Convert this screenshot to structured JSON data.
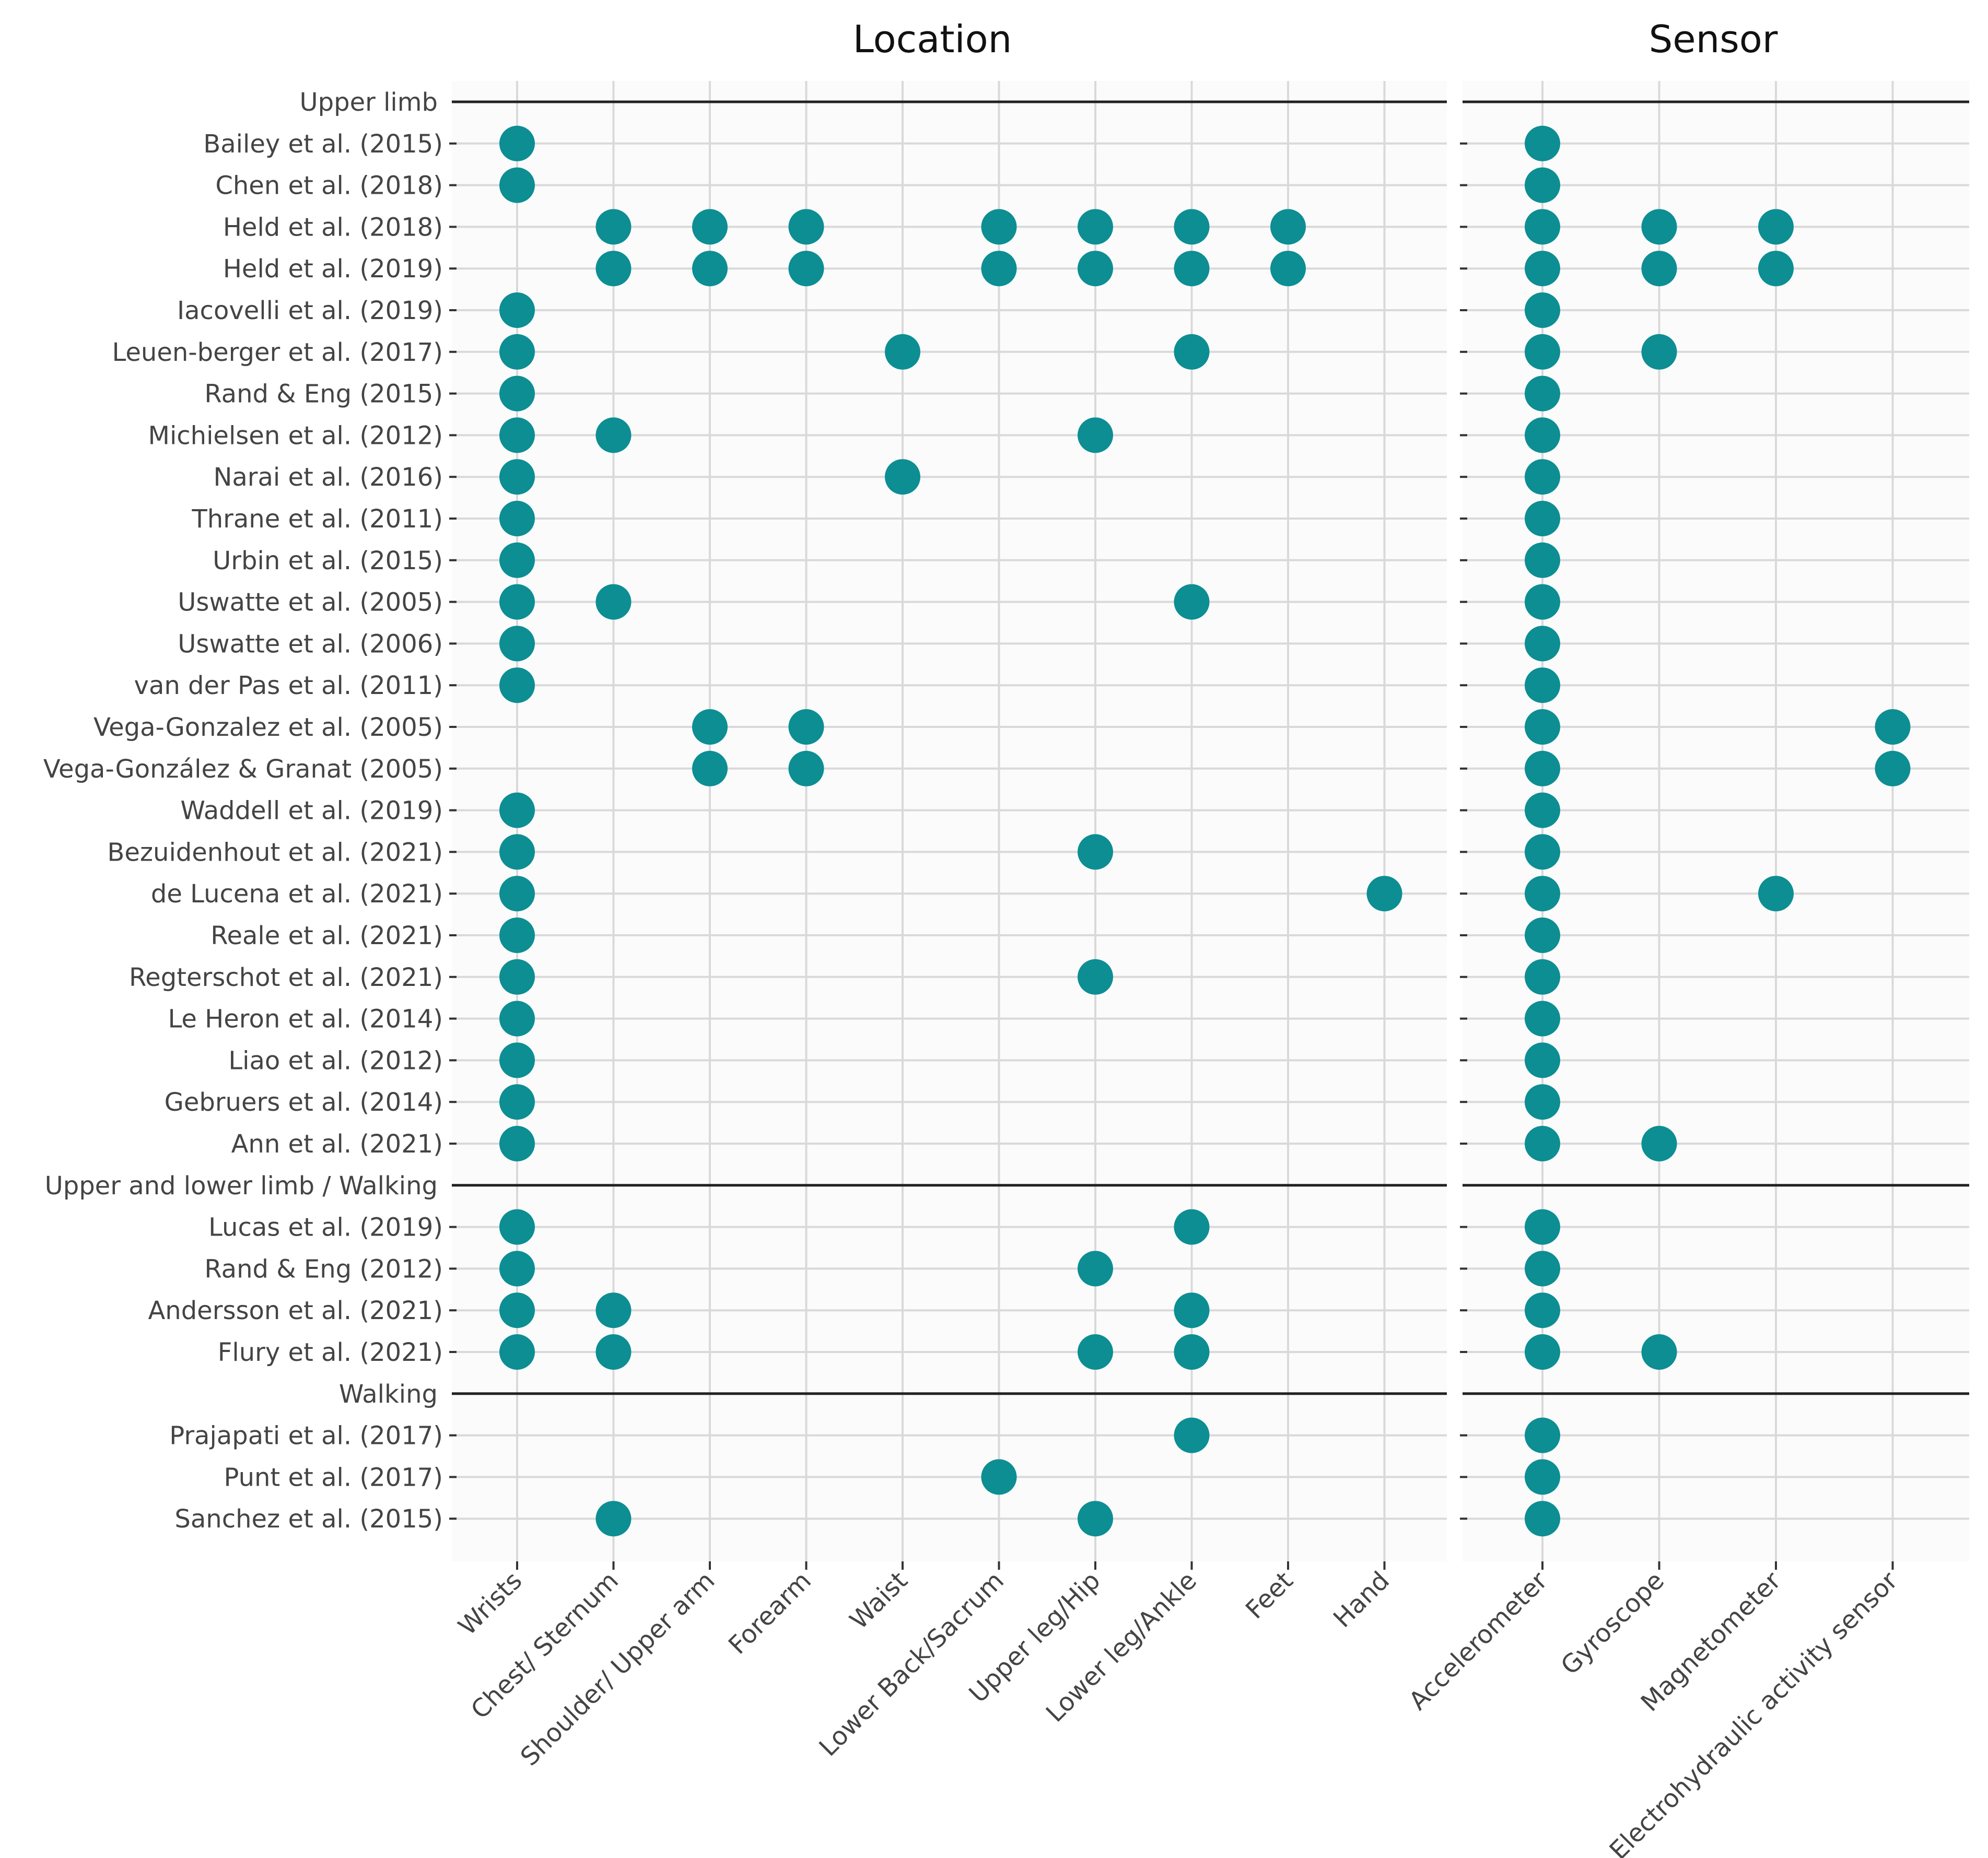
{
  "chart_data": {
    "type": "scatter",
    "panels": [
      {
        "key": "location",
        "title": "Location",
        "categories": [
          "Wrists",
          "Chest/ Sternum",
          "Shoulder/ Upper  arm",
          "Forearm",
          "Waist",
          "Lower Back/Sacrum",
          "Upper leg/Hip",
          "Lower leg/Ankle",
          "Feet",
          "Hand"
        ]
      },
      {
        "key": "sensor",
        "title": "Sensor",
        "categories": [
          "Accelerometer",
          "Gyroscope",
          "Magnetometer",
          "Electrohydraulic activity sensor"
        ]
      }
    ],
    "groups": [
      {
        "label": "Upper limb",
        "rows": [
          {
            "study": "Bailey et al. (2015)",
            "location": [
              "Wrists"
            ],
            "sensor": [
              "Accelerometer"
            ]
          },
          {
            "study": "Chen et al. (2018)",
            "location": [
              "Wrists"
            ],
            "sensor": [
              "Accelerometer"
            ]
          },
          {
            "study": "Held et al. (2018)",
            "location": [
              "Chest/ Sternum",
              "Shoulder/ Upper  arm",
              "Forearm",
              "Lower Back/Sacrum",
              "Upper leg/Hip",
              "Lower leg/Ankle",
              "Feet"
            ],
            "sensor": [
              "Accelerometer",
              "Gyroscope",
              "Magnetometer"
            ]
          },
          {
            "study": "Held et al. (2019)",
            "location": [
              "Chest/ Sternum",
              "Shoulder/ Upper  arm",
              "Forearm",
              "Lower Back/Sacrum",
              "Upper leg/Hip",
              "Lower leg/Ankle",
              "Feet"
            ],
            "sensor": [
              "Accelerometer",
              "Gyroscope",
              "Magnetometer"
            ]
          },
          {
            "study": "Iacovelli et al. (2019)",
            "location": [
              "Wrists"
            ],
            "sensor": [
              "Accelerometer"
            ]
          },
          {
            "study": "Leuen-berger et al. (2017)",
            "location": [
              "Wrists",
              "Waist",
              "Lower leg/Ankle"
            ],
            "sensor": [
              "Accelerometer",
              "Gyroscope"
            ]
          },
          {
            "study": "Rand & Eng (2015)",
            "location": [
              "Wrists"
            ],
            "sensor": [
              "Accelerometer"
            ]
          },
          {
            "study": "Michielsen et al. (2012)",
            "location": [
              "Wrists",
              "Chest/ Sternum",
              "Upper leg/Hip"
            ],
            "sensor": [
              "Accelerometer"
            ]
          },
          {
            "study": "Narai et al. (2016)",
            "location": [
              "Wrists",
              "Waist"
            ],
            "sensor": [
              "Accelerometer"
            ]
          },
          {
            "study": "Thrane et al. (2011)",
            "location": [
              "Wrists"
            ],
            "sensor": [
              "Accelerometer"
            ]
          },
          {
            "study": "Urbin et al. (2015)",
            "location": [
              "Wrists"
            ],
            "sensor": [
              "Accelerometer"
            ]
          },
          {
            "study": "Uswatte et al. (2005)",
            "location": [
              "Wrists",
              "Chest/ Sternum",
              "Lower leg/Ankle"
            ],
            "sensor": [
              "Accelerometer"
            ]
          },
          {
            "study": "Uswatte et al. (2006)",
            "location": [
              "Wrists"
            ],
            "sensor": [
              "Accelerometer"
            ]
          },
          {
            "study": "van der Pas et al. (2011)",
            "location": [
              "Wrists"
            ],
            "sensor": [
              "Accelerometer"
            ]
          },
          {
            "study": "Vega-Gonzalez et al. (2005)",
            "location": [
              "Shoulder/ Upper  arm",
              "Forearm"
            ],
            "sensor": [
              "Accelerometer",
              "Electrohydraulic activity sensor"
            ]
          },
          {
            "study": "Vega-González & Granat (2005)",
            "location": [
              "Shoulder/ Upper  arm",
              "Forearm"
            ],
            "sensor": [
              "Accelerometer",
              "Electrohydraulic activity sensor"
            ]
          },
          {
            "study": "Waddell et al. (2019)",
            "location": [
              "Wrists"
            ],
            "sensor": [
              "Accelerometer"
            ]
          },
          {
            "study": "Bezuidenhout et al. (2021)",
            "location": [
              "Wrists",
              "Upper leg/Hip"
            ],
            "sensor": [
              "Accelerometer"
            ]
          },
          {
            "study": "de Lucena et al. (2021)",
            "location": [
              "Wrists",
              "Hand"
            ],
            "sensor": [
              "Accelerometer",
              "Magnetometer"
            ]
          },
          {
            "study": "Reale et al. (2021)",
            "location": [
              "Wrists"
            ],
            "sensor": [
              "Accelerometer"
            ]
          },
          {
            "study": "Regterschot et al. (2021)",
            "location": [
              "Wrists",
              "Upper leg/Hip"
            ],
            "sensor": [
              "Accelerometer"
            ]
          },
          {
            "study": "Le Heron et al. (2014)",
            "location": [
              "Wrists"
            ],
            "sensor": [
              "Accelerometer"
            ]
          },
          {
            "study": "Liao et al. (2012)",
            "location": [
              "Wrists"
            ],
            "sensor": [
              "Accelerometer"
            ]
          },
          {
            "study": "Gebruers et al. (2014)",
            "location": [
              "Wrists"
            ],
            "sensor": [
              "Accelerometer"
            ]
          },
          {
            "study": "Ann et al. (2021)",
            "location": [
              "Wrists"
            ],
            "sensor": [
              "Accelerometer",
              "Gyroscope"
            ]
          }
        ]
      },
      {
        "label": "Upper and lower limb / Walking",
        "rows": [
          {
            "study": "Lucas et al. (2019)",
            "location": [
              "Wrists",
              "Lower leg/Ankle"
            ],
            "sensor": [
              "Accelerometer"
            ]
          },
          {
            "study": "Rand & Eng (2012)",
            "location": [
              "Wrists",
              "Upper leg/Hip"
            ],
            "sensor": [
              "Accelerometer"
            ]
          },
          {
            "study": "Andersson et al. (2021)",
            "location": [
              "Wrists",
              "Chest/ Sternum",
              "Lower leg/Ankle"
            ],
            "sensor": [
              "Accelerometer"
            ]
          },
          {
            "study": "Flury et al. (2021)",
            "location": [
              "Wrists",
              "Chest/ Sternum",
              "Upper leg/Hip",
              "Lower leg/Ankle"
            ],
            "sensor": [
              "Accelerometer",
              "Gyroscope"
            ]
          }
        ]
      },
      {
        "label": "Walking",
        "rows": [
          {
            "study": "Prajapati et al. (2017)",
            "location": [
              "Lower leg/Ankle"
            ],
            "sensor": [
              "Accelerometer"
            ]
          },
          {
            "study": "Punt et al. (2017)",
            "location": [
              "Lower Back/Sacrum"
            ],
            "sensor": [
              "Accelerometer"
            ]
          },
          {
            "study": "Sanchez et al. (2015)",
            "location": [
              "Chest/ Sternum",
              "Upper leg/Hip"
            ],
            "sensor": [
              "Accelerometer"
            ]
          }
        ]
      }
    ],
    "marker_color": "#0c8e93",
    "grid": true,
    "legend": "none"
  }
}
